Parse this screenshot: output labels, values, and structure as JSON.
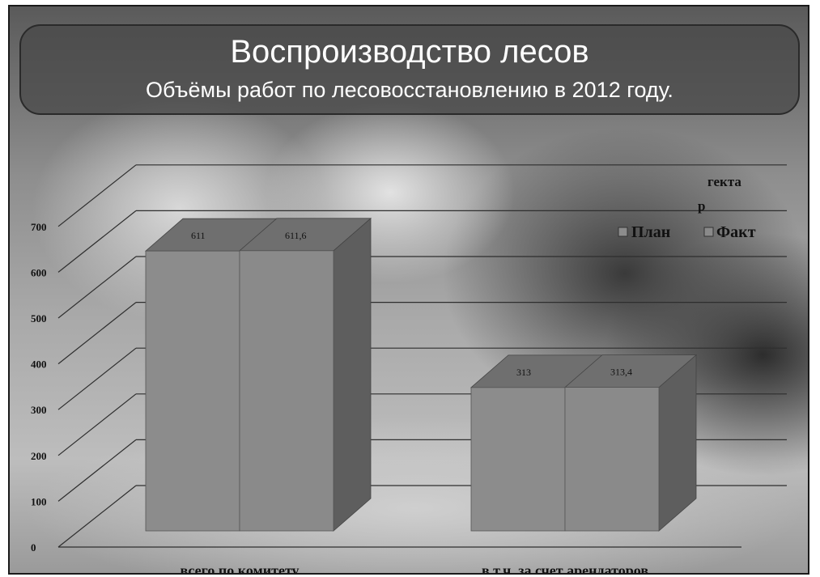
{
  "slide": {
    "title": "Воспроизводство лесов",
    "subtitle": "Объёмы работ по лесовосстановлению в 2012 году."
  },
  "chart_data": {
    "type": "bar",
    "categories": [
      "всего по комитету",
      "в т.ч. за счет арендаторов"
    ],
    "series": [
      {
        "name": "План",
        "values": [
          611,
          313
        ],
        "labels": [
          "611",
          "313"
        ]
      },
      {
        "name": "Факт",
        "values": [
          611.6,
          313.4
        ],
        "labels": [
          "611,6",
          "313,4"
        ]
      }
    ],
    "ylim": [
      0,
      700
    ],
    "yticks": [
      "0",
      "100",
      "200",
      "300",
      "400",
      "500",
      "600",
      "700"
    ],
    "unit_label_lines": [
      "гекта",
      "р"
    ],
    "grid": true,
    "legend": "top-right",
    "colors": {
      "bar_front": "#8c8c8c",
      "bar_front_alt": "#8a8a8a",
      "bar_top": "#6f6f6f",
      "bar_side": "#5e5e5e",
      "grid": "#2e2e2e"
    }
  }
}
